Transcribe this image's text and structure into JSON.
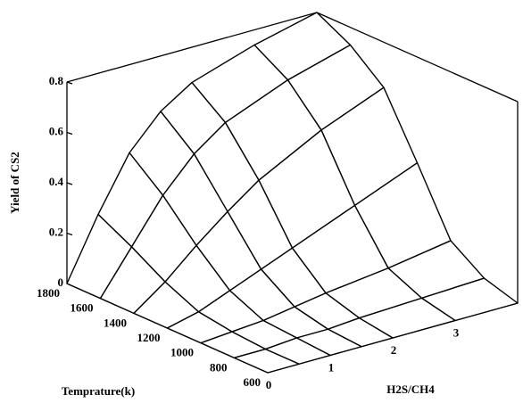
{
  "chart_data": {
    "type": "surface3d",
    "xlabel": "H2S/CH4",
    "ylabel": "Temprature(k)",
    "zlabel": "Yield of CS2",
    "x": [
      0,
      0.5,
      1,
      1.5,
      2,
      3,
      4
    ],
    "y": [
      600,
      800,
      1000,
      1200,
      1400,
      1600,
      1800
    ],
    "z": [
      [
        0,
        0,
        0,
        0,
        0,
        0,
        0
      ],
      [
        0,
        0,
        0.01,
        0.01,
        0.02,
        0.03,
        0.04
      ],
      [
        0,
        0.01,
        0.02,
        0.04,
        0.06,
        0.09,
        0.13
      ],
      [
        0,
        0.03,
        0.08,
        0.13,
        0.18,
        0.28,
        0.38
      ],
      [
        0,
        0.09,
        0.2,
        0.3,
        0.39,
        0.52,
        0.62
      ],
      [
        0,
        0.17,
        0.34,
        0.47,
        0.56,
        0.66,
        0.73
      ],
      [
        0,
        0.24,
        0.45,
        0.58,
        0.66,
        0.74,
        0.8
      ]
    ],
    "xlim": [
      0,
      4
    ],
    "ylim": [
      600,
      1800
    ],
    "zlim": [
      0,
      0.8
    ],
    "xticks": [
      0,
      1,
      2,
      3
    ],
    "yticks": [
      600,
      800,
      1000,
      1200,
      1400,
      1600,
      1800
    ],
    "zticks": [
      0,
      0.2,
      0.4,
      0.6,
      0.8
    ],
    "color": "#000000",
    "fill": "#ffffff"
  }
}
